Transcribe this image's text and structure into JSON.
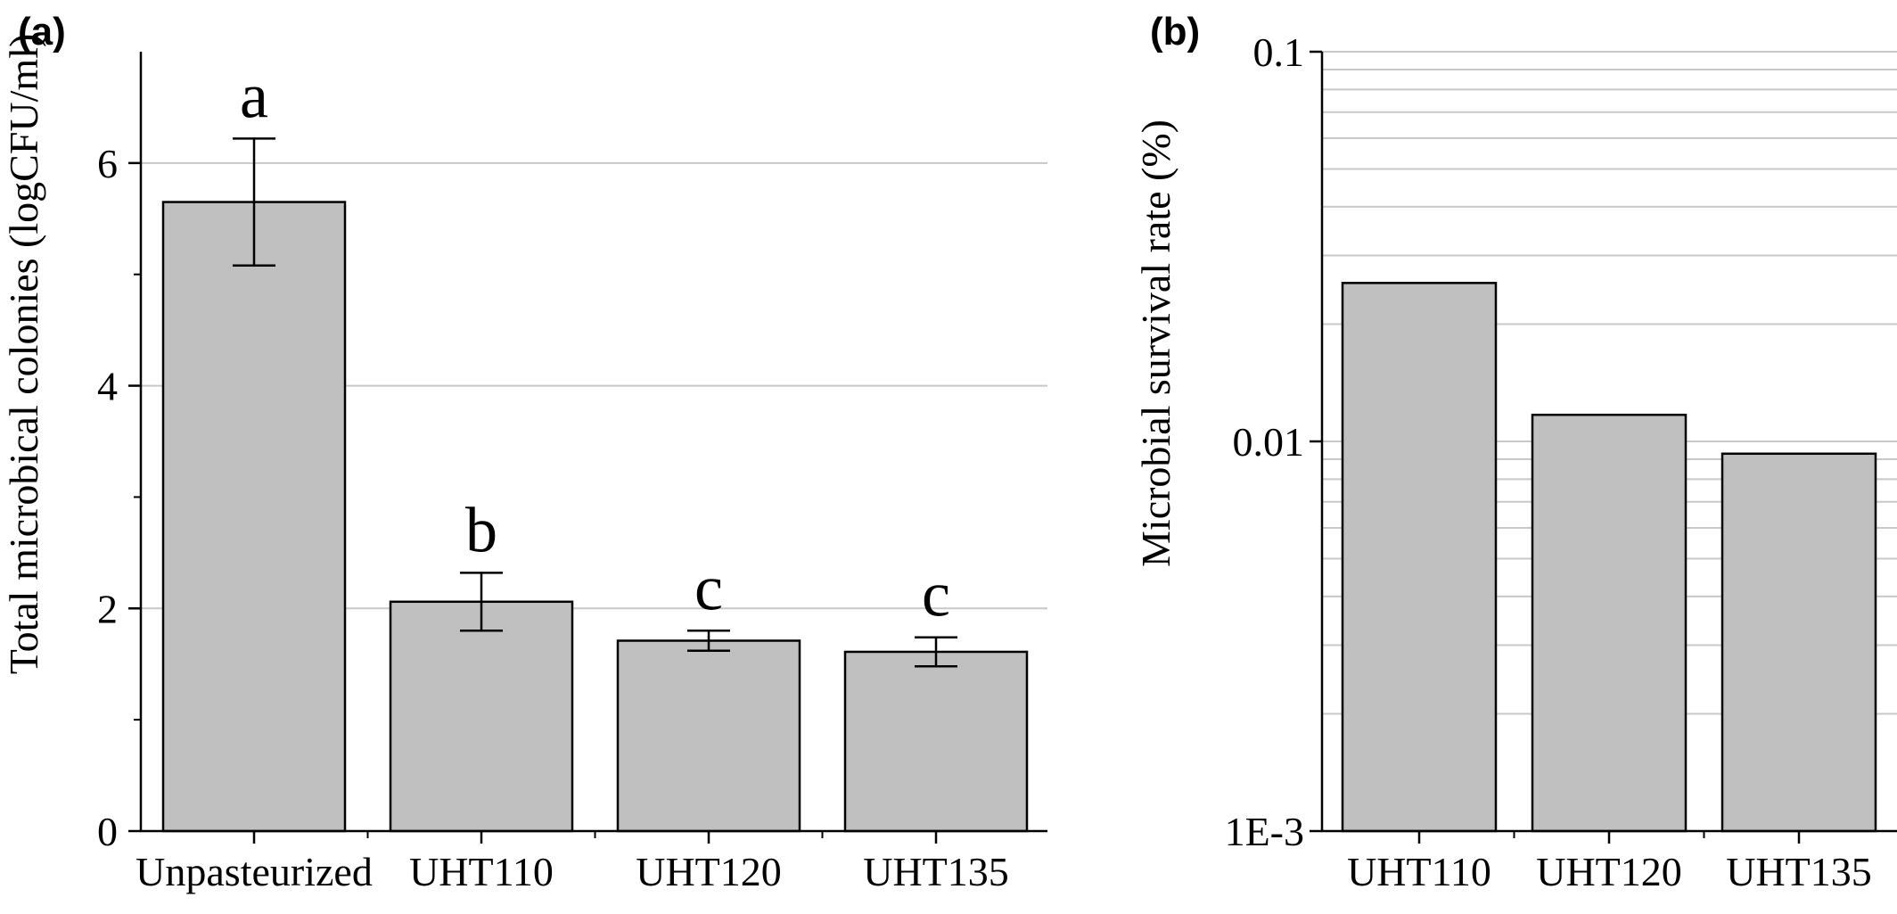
{
  "chart_data": [
    {
      "panel": "(a)",
      "type": "bar",
      "title": "",
      "xlabel": "",
      "ylabel": "Total microbical colonies (logCFU/ml)",
      "categories": [
        "Unpasteurized",
        "UHT110",
        "UHT120",
        "UHT135"
      ],
      "values": [
        5.65,
        2.06,
        1.71,
        1.61
      ],
      "errors": [
        0.57,
        0.26,
        0.09,
        0.13
      ],
      "significance": [
        "a",
        "b",
        "c",
        "c"
      ],
      "ylim": [
        0,
        7
      ],
      "yticks": [
        0,
        2,
        4,
        6
      ],
      "ytick_labels": [
        "0",
        "2",
        "4",
        "6"
      ],
      "grid": true,
      "bar_color": "#c0c0c0"
    },
    {
      "panel": "(b)",
      "type": "bar",
      "title": "",
      "xlabel": "",
      "ylabel": "Microbial survival rate (%)",
      "yscale": "log",
      "categories": [
        "UHT110",
        "UHT120",
        "UHT135"
      ],
      "values": [
        0.0255,
        0.0117,
        0.0093
      ],
      "ylim": [
        0.001,
        0.1
      ],
      "yticks": [
        0.001,
        0.01,
        0.1
      ],
      "ytick_labels": [
        "1E-3",
        "0.01",
        "0.1"
      ],
      "grid": true,
      "bar_color": "#c0c0c0"
    }
  ]
}
